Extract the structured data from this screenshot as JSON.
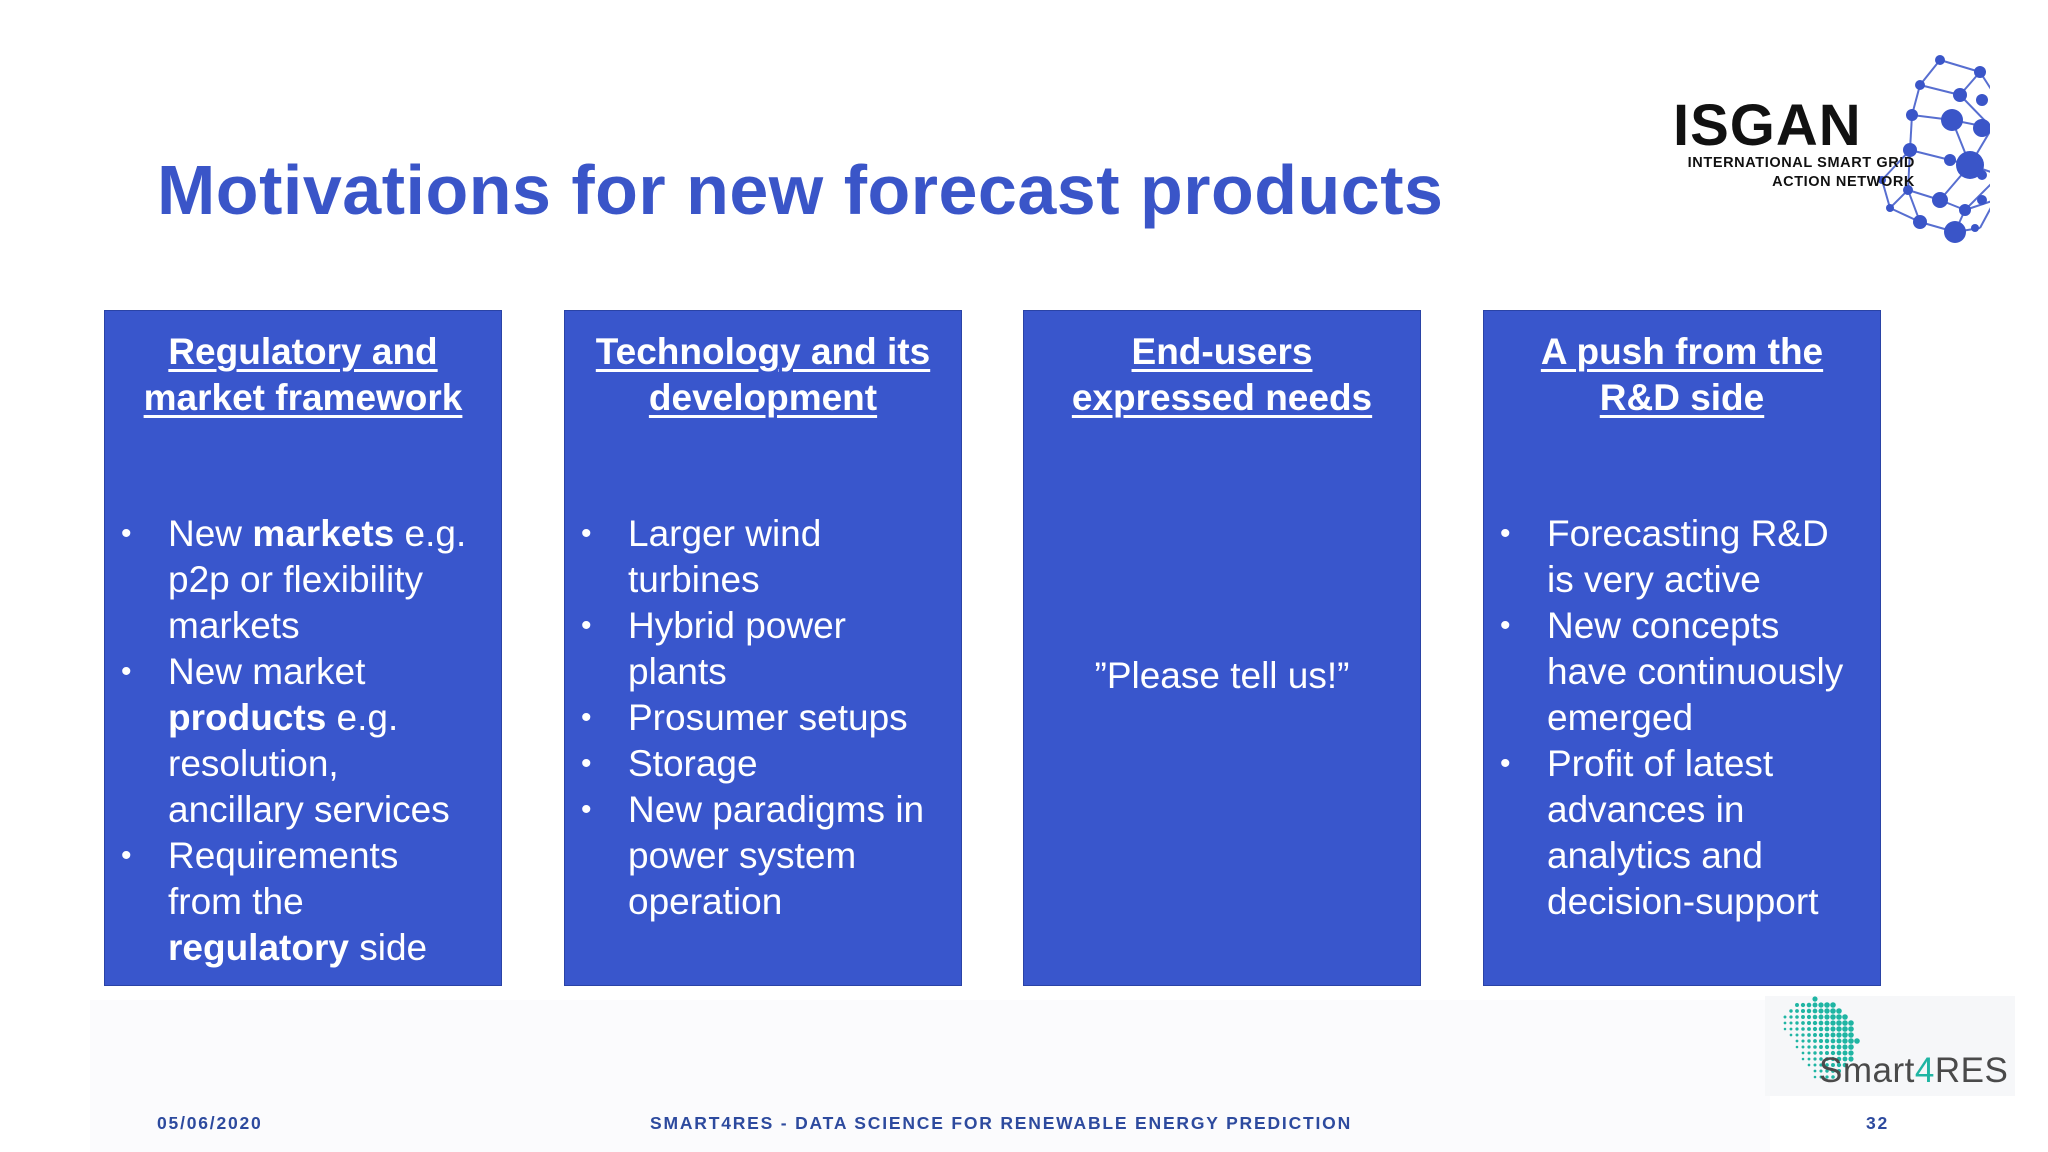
{
  "slide": {
    "title": "Motivations for new forecast products"
  },
  "logo_isgan": {
    "name": "ISGAN",
    "tagline_line1": "INTERNATIONAL SMART GRID",
    "tagline_line2": "ACTION NETWORK",
    "color": "#3a55c8"
  },
  "boxes": [
    {
      "heading_line1": "Regulatory and",
      "heading_line2": "market framework",
      "bullets": [
        {
          "lines": [
            [
              "New ",
              "markets",
              " e.g."
            ],
            [
              "p2p or flexibility"
            ],
            [
              "markets"
            ]
          ]
        },
        {
          "lines": [
            [
              "New market"
            ],
            [
              "",
              "products",
              " e.g."
            ],
            [
              "resolution,"
            ],
            [
              "ancillary services"
            ]
          ]
        },
        {
          "lines": [
            [
              "Requirements"
            ],
            [
              "from the"
            ],
            [
              "",
              "regulatory",
              " side"
            ]
          ]
        }
      ]
    },
    {
      "heading_line1": "Technology and its",
      "heading_line2": "development",
      "bullets": [
        {
          "lines": [
            [
              "Larger wind"
            ],
            [
              "turbines"
            ]
          ]
        },
        {
          "lines": [
            [
              "Hybrid power"
            ],
            [
              "plants"
            ]
          ]
        },
        {
          "lines": [
            [
              "Prosumer setups"
            ]
          ]
        },
        {
          "lines": [
            [
              "Storage"
            ]
          ]
        },
        {
          "lines": [
            [
              "New paradigms in"
            ],
            [
              "power system"
            ],
            [
              "operation"
            ]
          ]
        }
      ]
    },
    {
      "heading_line1": "End-users",
      "heading_line2": "expressed needs",
      "center_text": "”Please tell us!”"
    },
    {
      "heading_line1": "A push from the",
      "heading_line2": "R&D side",
      "bullets": [
        {
          "lines": [
            [
              "Forecasting R&D"
            ],
            [
              "is very active"
            ]
          ]
        },
        {
          "lines": [
            [
              "New concepts"
            ],
            [
              "have continuously"
            ],
            [
              "emerged"
            ]
          ]
        },
        {
          "lines": [
            [
              "Profit of latest"
            ],
            [
              "advances in"
            ],
            [
              "analytics and"
            ],
            [
              "decision-support"
            ]
          ]
        }
      ]
    }
  ],
  "logo_smart4res": {
    "text_before": "Smart",
    "text_four": "4",
    "text_after": "RES",
    "accent_color": "#1fb5a3"
  },
  "footer": {
    "date": "05/06/2020",
    "center": "SMART4RES - DATA SCIENCE FOR RENEWABLE ENERGY PREDICTION",
    "page_number": "32"
  },
  "colors": {
    "title": "#3a55c8",
    "box_fill": "#3956cc",
    "box_text": "#ffffff",
    "footer_text": "#2d4a9e"
  }
}
